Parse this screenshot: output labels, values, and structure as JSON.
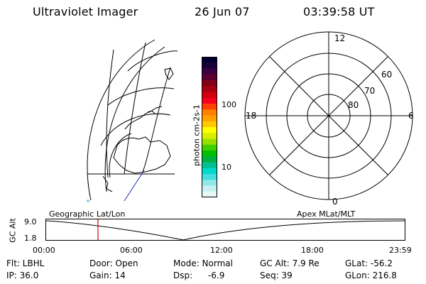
{
  "header": {
    "title": "Ultraviolet Imager",
    "date": "26 Jun 07",
    "time": "03:39:58 UT"
  },
  "colorbar": {
    "unit_label": "photon cm-2s-1",
    "tick_100": "100",
    "tick_10": "10",
    "colors": [
      "#000033",
      "#1a003a",
      "#3a0040",
      "#5a0030",
      "#800015",
      "#a80010",
      "#d0000e",
      "#f2001e",
      "#ff4000",
      "#ff8000",
      "#ffa000",
      "#ffc800",
      "#ffff00",
      "#d8f000",
      "#98e000",
      "#40d000",
      "#00c000",
      "#00b040",
      "#00c090",
      "#00d8c8",
      "#40e0e0",
      "#90e8e8",
      "#c8f0f0",
      "#e8f8f8"
    ]
  },
  "polar": {
    "mlt_12": "12",
    "mlt_18": "18",
    "mlt_6": "6",
    "mlt_0": "0",
    "lat_60": "60",
    "lat_70": "70",
    "lat_80": "80"
  },
  "timeline": {
    "ylabel": "GC Alt",
    "y_top": "9.0",
    "y_bottom": "1.8",
    "left_label": "Geographic Lat/Lon",
    "right_label": "Apex MLat/MLT",
    "x_ticks": [
      "00:00",
      "06:00",
      "12:00",
      "18:00",
      "23:59"
    ],
    "marker_color": "#e00000"
  },
  "info": {
    "r1": [
      "Flt: LBHL",
      "Door: Open",
      "Mode: Normal",
      "GC Alt: 7.9 Re",
      "GLat: -56.2"
    ],
    "r2": [
      "IP: 36.0",
      "Gain: 14",
      "Dsp:",
      "-6.9",
      "Seq: 39",
      "GLon: 216.8"
    ]
  }
}
